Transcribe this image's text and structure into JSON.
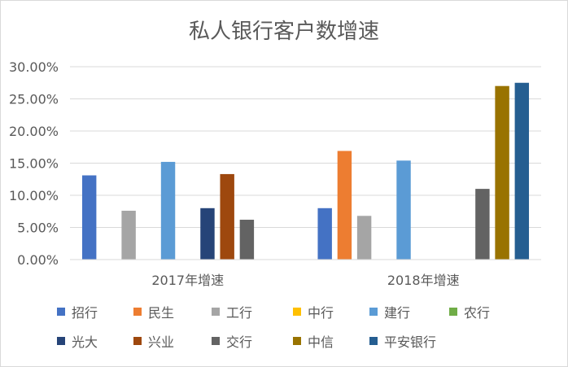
{
  "chart_data": {
    "type": "bar",
    "title": "私人银行客户数增速",
    "categories": [
      "2017年增速",
      "2018年增速"
    ],
    "ylim": [
      0,
      0.3
    ],
    "yticks": [
      "0.00%",
      "5.00%",
      "10.00%",
      "15.00%",
      "20.00%",
      "25.00%",
      "30.00%"
    ],
    "grid": true,
    "legend_position": "bottom",
    "series": [
      {
        "name": "招行",
        "color": "#4472C4",
        "values": [
          0.131,
          0.08
        ]
      },
      {
        "name": "民生",
        "color": "#ED7D31",
        "values": [
          null,
          0.169
        ]
      },
      {
        "name": "工行",
        "color": "#A5A5A5",
        "values": [
          0.076,
          0.068
        ]
      },
      {
        "name": "中行",
        "color": "#FFC000",
        "values": [
          null,
          null
        ]
      },
      {
        "name": "建行",
        "color": "#5B9BD5",
        "values": [
          0.152,
          0.154
        ]
      },
      {
        "name": "农行",
        "color": "#70AD47",
        "values": [
          null,
          null
        ]
      },
      {
        "name": "光大",
        "color": "#264478",
        "values": [
          0.08,
          null
        ]
      },
      {
        "name": "兴业",
        "color": "#9E480E",
        "values": [
          0.133,
          null
        ]
      },
      {
        "name": "交行",
        "color": "#636363",
        "values": [
          0.062,
          0.11
        ]
      },
      {
        "name": "中信",
        "color": "#997300",
        "values": [
          null,
          0.27
        ]
      },
      {
        "name": "平安银行",
        "color": "#255E91",
        "values": [
          null,
          0.275
        ]
      }
    ]
  }
}
